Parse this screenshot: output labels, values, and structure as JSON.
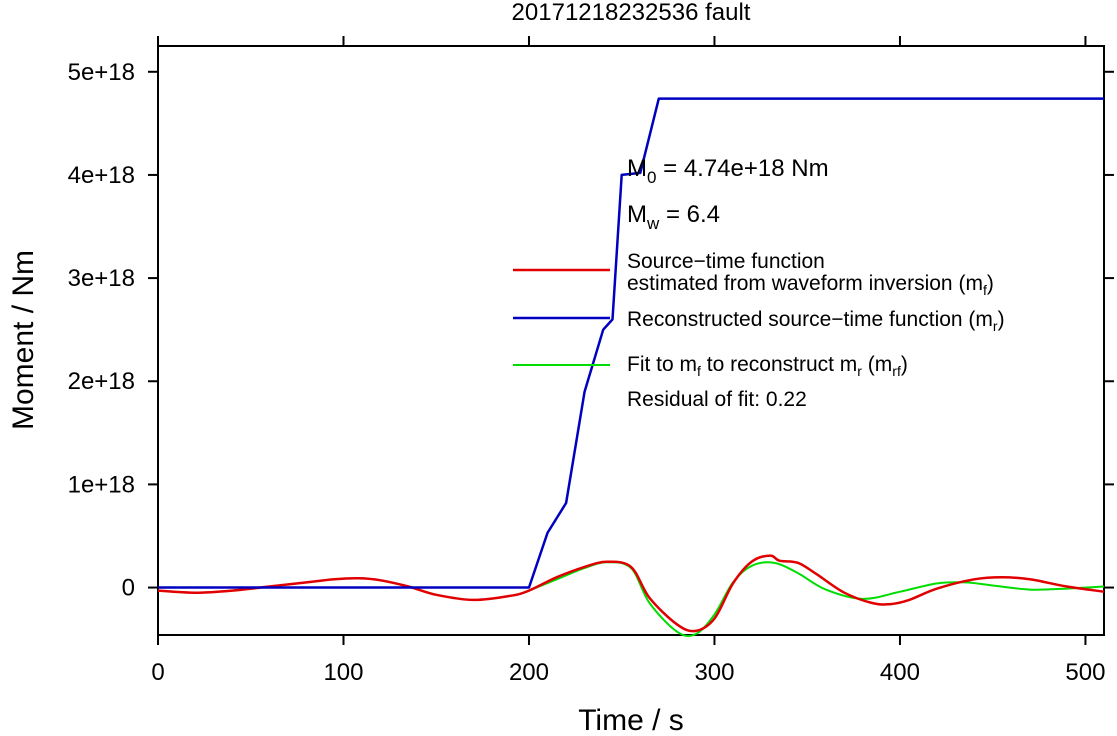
{
  "chart_data": {
    "type": "line",
    "title": "20171218232536 fault",
    "xlabel": "Time / s",
    "ylabel": "Moment / Nm",
    "xlim": [
      0,
      510
    ],
    "ylim": [
      -4.6e+17,
      5.25e+18
    ],
    "xticks": [
      0,
      100,
      200,
      300,
      400,
      500
    ],
    "xtick_labels": [
      "0",
      "100",
      "200",
      "300",
      "400",
      "500"
    ],
    "yticks": [
      0,
      1e+18,
      2e+18,
      3e+18,
      4e+18,
      5e+18
    ],
    "ytick_labels": [
      "0",
      "1e+18",
      "2e+18",
      "3e+18",
      "4e+18",
      "5e+18"
    ],
    "grid": false,
    "annotations": {
      "m0": {
        "main": "M",
        "sub": "0",
        "rest": " = 4.74e+18 Nm"
      },
      "mw": {
        "main": "M",
        "sub": "w",
        "rest": " = 6.4"
      }
    },
    "legend": {
      "position": "right",
      "items": [
        {
          "series": 0,
          "line1": "Source−time function",
          "line2_pre": "estimated from waveform inversion (m",
          "line2_sub": "f",
          "line2_post": ")"
        },
        {
          "series": 1,
          "line1_pre": "Reconstructed source−time function (m",
          "line1_sub": "r",
          "line1_post": ")"
        },
        {
          "series": 2,
          "line1_pre": "Fit to m",
          "line1_sub": "f",
          "line1_mid": " to reconstruct m",
          "line1_sub2": "r",
          "line1_mid2": " (m",
          "line1_sub3": "rf",
          "line1_post": ")"
        }
      ],
      "residual": "Residual of fit: 0.22"
    },
    "series": [
      {
        "color": "#e00000",
        "x": [
          0,
          20,
          40,
          60,
          80,
          95,
          108,
          120,
          135,
          150,
          170,
          190,
          200,
          215,
          230,
          242,
          255,
          265,
          280,
          290,
          300,
          310,
          320,
          330,
          335,
          345,
          355,
          370,
          385,
          395,
          405,
          420,
          440,
          455,
          470,
          490,
          510
        ],
        "y": [
          -3e+16,
          -5e+16,
          -3e+16,
          1e+16,
          5e+16,
          8e+16,
          9e+16,
          7e+16,
          1e+16,
          -7e+16,
          -1.2e+17,
          -8e+16,
          -3e+16,
          1e+17,
          2e+17,
          2.5e+17,
          2e+17,
          -1e+17,
          -3.6e+17,
          -4.2e+17,
          -3e+17,
          4e+16,
          2.5e+17,
          3.1e+17,
          2.6e+17,
          2.4e+17,
          1.3e+17,
          -5e+16,
          -1.5e+17,
          -1.6e+17,
          -1.2e+17,
          -1e+16,
          8e+16,
          1e+17,
          8e+16,
          1e+16,
          -4e+16
        ]
      },
      {
        "color": "#0000c0",
        "x": [
          0,
          200,
          210,
          220,
          230,
          240,
          245,
          250,
          260,
          270,
          510
        ],
        "y": [
          0,
          0,
          5.3e+17,
          8.2e+17,
          1.9e+18,
          2.5e+18,
          2.6e+18,
          4e+18,
          4.02e+18,
          4.74e+18,
          4.74e+18
        ]
      },
      {
        "color": "#00dd00",
        "x": [
          200,
          215,
          230,
          242,
          255,
          265,
          280,
          290,
          300,
          310,
          320,
          332,
          345,
          360,
          380,
          400,
          420,
          435,
          450,
          470,
          490,
          510
        ],
        "y": [
          -3e+16,
          8e+16,
          1.9e+17,
          2.45e+17,
          1.9e+17,
          -1.5e+17,
          -4.3e+17,
          -4.5e+17,
          -2.6e+17,
          5e+16,
          2.1e+17,
          2.4e+17,
          1.4e+17,
          -2e+16,
          -1.1e+17,
          -4e+16,
          4e+16,
          5e+16,
          2e+16,
          -2e+16,
          -1e+16,
          1e+16
        ]
      }
    ]
  }
}
